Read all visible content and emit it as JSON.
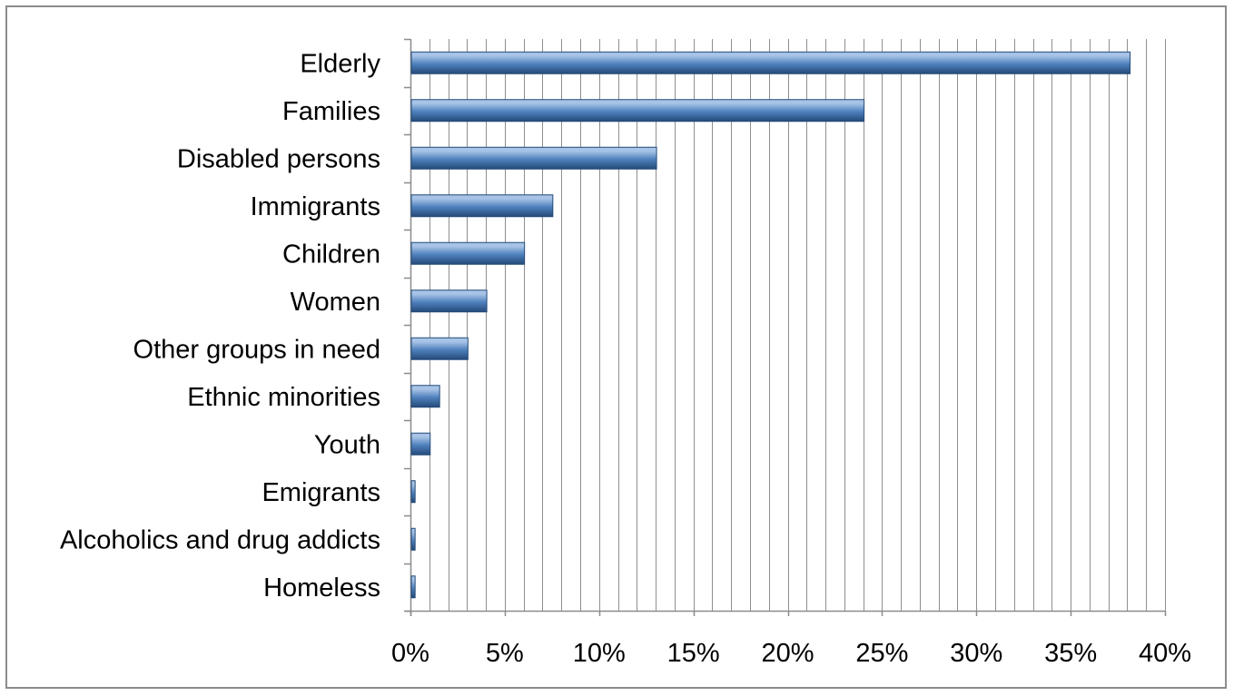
{
  "chart_data": {
    "type": "bar",
    "orientation": "horizontal",
    "title": "",
    "xlabel": "",
    "ylabel": "",
    "categories": [
      "Elderly",
      "Families",
      "Disabled persons",
      "Immigrants",
      "Children",
      "Women",
      "Other groups in need",
      "Ethnic minorities",
      "Youth",
      "Emigrants",
      "Alcoholics and drug addicts",
      "Homeless"
    ],
    "values": [
      38.1,
      24.0,
      13.0,
      7.5,
      6.0,
      4.0,
      3.0,
      1.5,
      1.0,
      0.2,
      0.2,
      0.2
    ],
    "value_unit": "%",
    "xlim": [
      0,
      40
    ],
    "x_ticks": [
      0,
      5,
      10,
      15,
      20,
      25,
      30,
      35,
      40
    ],
    "x_tick_labels": [
      "0%",
      "5%",
      "10%",
      "15%",
      "20%",
      "25%",
      "30%",
      "35%",
      "40%"
    ],
    "minor_gridline_step": 1,
    "grid": true,
    "legend": "none",
    "bar_color": "#4f81bd",
    "bar_highlight_color": "#a7c3e6",
    "bar_shadow_color": "#244a78",
    "gridline_color": "#8f8f8f"
  }
}
